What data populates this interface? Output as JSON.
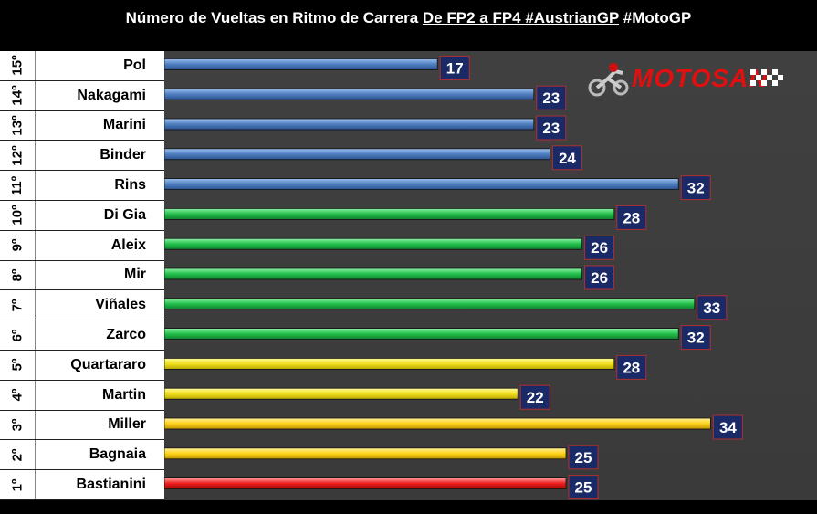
{
  "title": {
    "prefix": "Número de Vueltas en Ritmo de Carrera ",
    "underlined": "De FP2 a FP4 #AustrianGP",
    "suffix": "  #MotoGP"
  },
  "logo": {
    "text": "MOTOSAN",
    "icon": "motorcycle-rider-icon"
  },
  "colors": {
    "blue": "#4f7fc0",
    "green": "#22c04a",
    "yellow": "#f2e020",
    "yellow2": "#ffd21a",
    "red": "#ee1c1c",
    "label_box": "#1a2a66"
  },
  "chart_data": {
    "type": "bar",
    "orientation": "horizontal",
    "positions": [
      "15º",
      "14º",
      "13º",
      "12º",
      "11º",
      "10º",
      "9º",
      "8º",
      "7º",
      "6º",
      "5º",
      "4º",
      "3º",
      "2º",
      "1º"
    ],
    "categories": [
      "Pol",
      "Nakagami",
      "Marini",
      "Binder",
      "Rins",
      "Di Gia",
      "Aleix",
      "Mir",
      "Viñales",
      "Zarco",
      "Quartararo",
      "Martin",
      "Miller",
      "Bagnaia",
      "Bastianini"
    ],
    "values": [
      17,
      23,
      23,
      24,
      32,
      28,
      26,
      26,
      33,
      32,
      28,
      22,
      34,
      25,
      25
    ],
    "bar_colors": [
      "blue",
      "blue",
      "blue",
      "blue",
      "blue",
      "green",
      "green",
      "green",
      "green",
      "green",
      "yellow",
      "yellow",
      "yellow2",
      "yellow2",
      "red"
    ],
    "xlim": [
      0,
      40
    ],
    "grid": false,
    "legend": "none"
  }
}
